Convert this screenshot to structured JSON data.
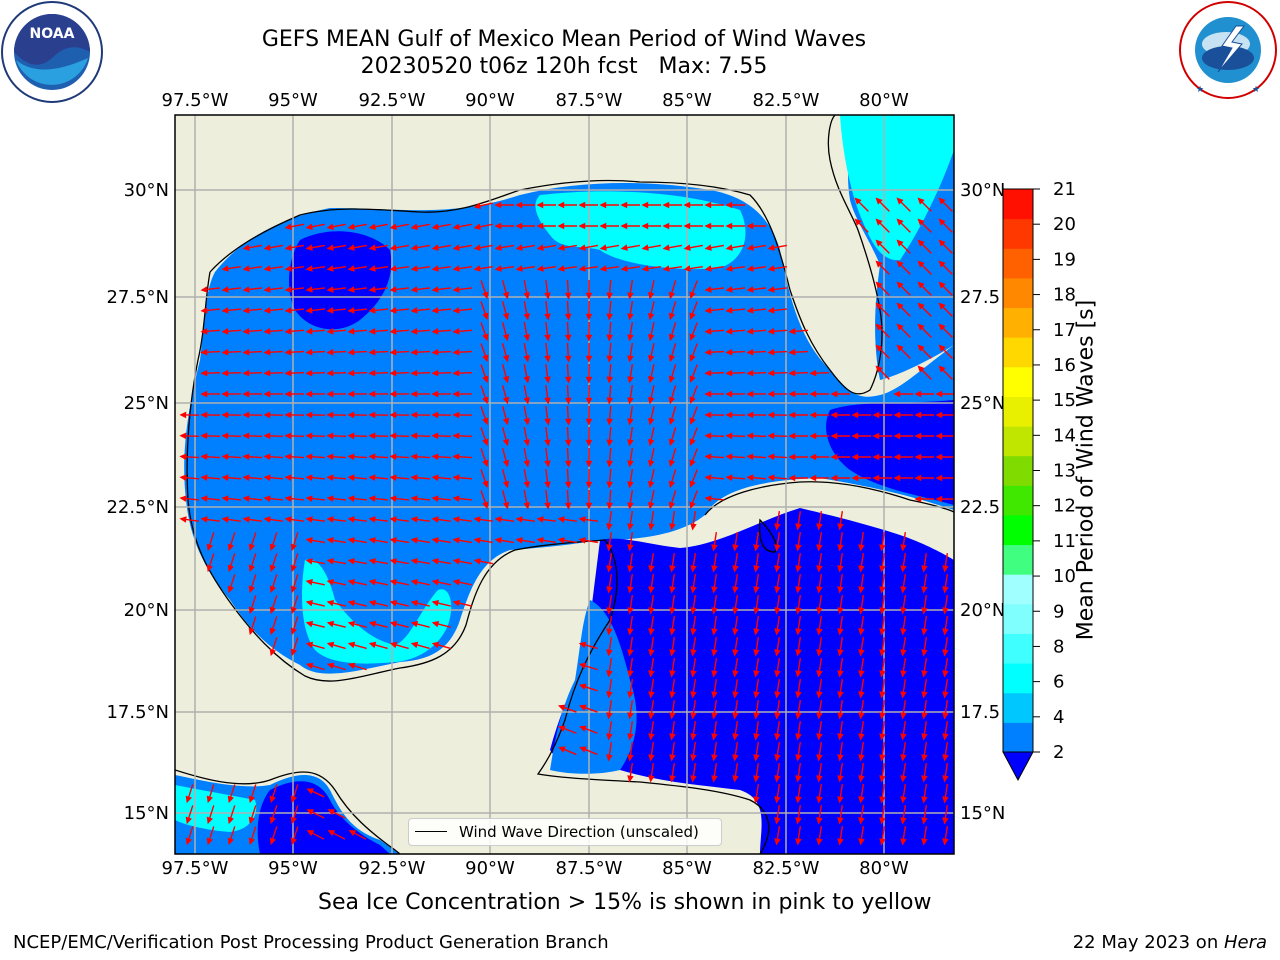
{
  "title": {
    "line1": "GEFS MEAN Gulf of Mexico Mean Period of Wind Waves",
    "line2": "20230520 t06z 120h fcst   Max: 7.55"
  },
  "logos": {
    "noaa_text": "NOAA",
    "noaa_ring": "NATIONAL OCEANIC AND ATMOSPHERIC ADMINISTRATION · U.S. DEPARTMENT OF COMMERCE",
    "nws_ring": "NATIONAL WEATHER SERVICE"
  },
  "map": {
    "lon_labels": [
      "97.5°W",
      "95°W",
      "92.5°W",
      "90°W",
      "87.5°W",
      "85°W",
      "82.5°W",
      "80°W"
    ],
    "lat_labels_left": [
      "30°N",
      "27.5°N",
      "25°N",
      "22.5°N",
      "20°N",
      "17.5°N",
      "15°N"
    ],
    "lat_labels_right": [
      "30°N",
      "27.5",
      "25°N",
      "22.5",
      "20°N",
      "17.5",
      "15°N"
    ],
    "land_color": "#eeeedc",
    "grid_color": "#b0b0b0",
    "arrow_color": "#ff0000",
    "legend_label": "Wind Wave Direction (unscaled)"
  },
  "colorbar": {
    "label": "Mean Period of Wind Waves [s]",
    "ticks": [
      "21",
      "20",
      "19",
      "18",
      "17",
      "16",
      "15",
      "14",
      "13",
      "12",
      "11",
      "10",
      "9",
      "8",
      "6",
      "4",
      "2"
    ],
    "colors_bottom_to_top": [
      "#0080ff",
      "#00c8ff",
      "#00ffff",
      "#40ffff",
      "#80ffff",
      "#a0ffff",
      "#40ff80",
      "#00ff00",
      "#40e800",
      "#80dc00",
      "#c0e600",
      "#e8f000",
      "#ffff00",
      "#ffd800",
      "#ffb000",
      "#ff8800",
      "#ff6000",
      "#ff3800",
      "#ff1000"
    ],
    "extend_color": "#0000ff"
  },
  "subtitle": "Sea Ice Concentration > 15% is shown in pink to yellow",
  "footer": {
    "left": "NCEP/EMC/Verification Post Processing Product Generation Branch",
    "right_prefix": "22 May 2023 on ",
    "right_host": "Hera"
  }
}
